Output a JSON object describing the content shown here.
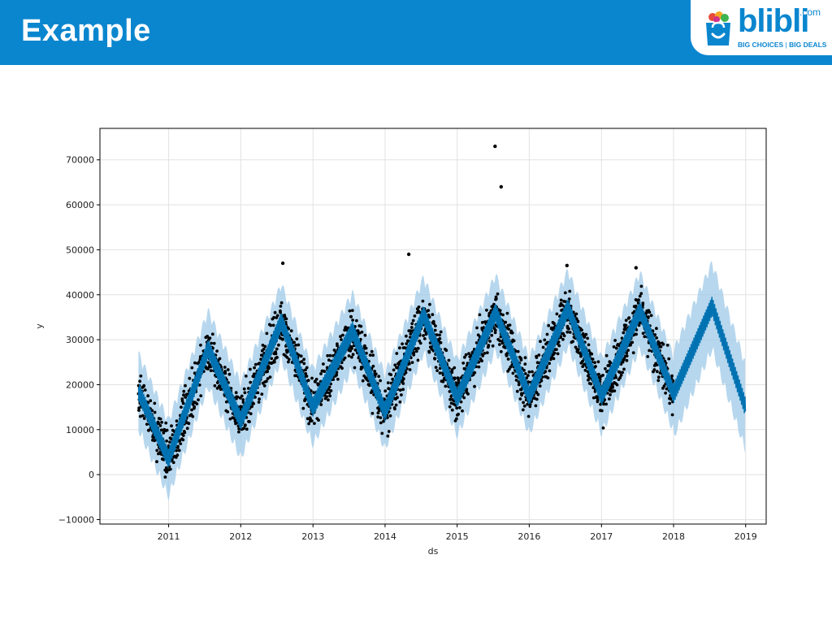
{
  "header": {
    "title": "Example",
    "bar_color": "#0a86cf"
  },
  "logo": {
    "word": "blibli",
    "suffix": ".com",
    "tagline_left": "BIG CHOICES",
    "tagline_right": "BIG DEALS"
  },
  "chart_data": {
    "type": "scatter",
    "title": "",
    "xlabel": "ds",
    "ylabel": "y",
    "xlim": [
      "2010-01-18",
      "2019-04-15"
    ],
    "ylim": [
      -11000,
      77000
    ],
    "grid": true,
    "x_ticks": [
      "2011",
      "2012",
      "2013",
      "2014",
      "2015",
      "2016",
      "2017",
      "2018",
      "2019"
    ],
    "y_ticks": [
      -10000,
      0,
      10000,
      20000,
      30000,
      40000,
      50000,
      60000,
      70000
    ],
    "colors": {
      "observed": "#000000",
      "forecast": "#0072b2",
      "uncertainty": "#9fc9e8"
    },
    "series": [
      {
        "role": "observed points",
        "observed_start": "2010-08-01",
        "observed_end": "2017-12-31"
      },
      {
        "role": "forecast line",
        "start": "2010-08-01",
        "end": "2018-12-31"
      },
      {
        "role": "uncertainty interval",
        "start": "2010-08-01",
        "end": "2018-12-31"
      }
    ],
    "forecast_keypoints": [
      {
        "x": "2010-08-01",
        "y": 18500
      },
      {
        "x": "2010-12-31",
        "y": 3500
      },
      {
        "x": "2011-07-20",
        "y": 28000
      },
      {
        "x": "2012-01-01",
        "y": 12000
      },
      {
        "x": "2012-07-25",
        "y": 34000
      },
      {
        "x": "2012-12-31",
        "y": 15000
      },
      {
        "x": "2013-07-20",
        "y": 32000
      },
      {
        "x": "2013-12-31",
        "y": 14000
      },
      {
        "x": "2014-07-15",
        "y": 35500
      },
      {
        "x": "2015-01-01",
        "y": 17000
      },
      {
        "x": "2015-07-15",
        "y": 36000
      },
      {
        "x": "2016-01-01",
        "y": 17500
      },
      {
        "x": "2016-07-15",
        "y": 37000
      },
      {
        "x": "2017-01-01",
        "y": 17500
      },
      {
        "x": "2017-07-15",
        "y": 36500
      },
      {
        "x": "2018-01-01",
        "y": 18000
      },
      {
        "x": "2018-07-15",
        "y": 37500
      },
      {
        "x": "2018-12-31",
        "y": 15000
      }
    ],
    "notable_points": [
      {
        "x": "2015-07-12",
        "y": 73000
      },
      {
        "x": "2015-08-12",
        "y": 64000
      },
      {
        "x": "2014-05-01",
        "y": 49000
      },
      {
        "x": "2012-08-01",
        "y": 47000
      },
      {
        "x": "2016-07-10",
        "y": 46500
      },
      {
        "x": "2017-06-25",
        "y": 46000
      }
    ]
  }
}
